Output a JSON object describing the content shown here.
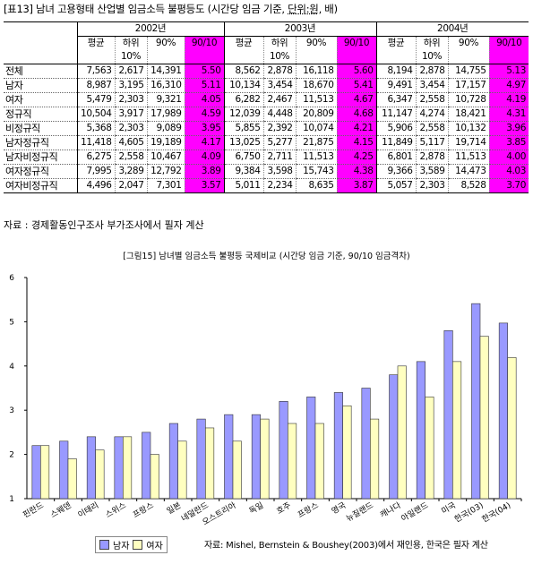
{
  "table": {
    "title_main": "[표13] 남녀 고용형태 산업별 임금소득 불평등도 (시간당 임금 기준, ",
    "title_unit": "단위:원",
    "title_tail": ", 배)",
    "years": [
      "2002년",
      "2003년",
      "2004년"
    ],
    "cols": [
      "평균",
      "하위10%",
      "90%",
      "90/10"
    ],
    "rows": [
      {
        "label": "전체",
        "values": [
          [
            "7,563",
            "2,617",
            "14,391",
            "5.50"
          ],
          [
            "8,562",
            "2,878",
            "16,118",
            "5.60"
          ],
          [
            "8,194",
            "2,878",
            "14,755",
            "5.13"
          ]
        ]
      },
      {
        "label": "남자",
        "values": [
          [
            "8,987",
            "3,195",
            "16,310",
            "5.11"
          ],
          [
            "10,134",
            "3,454",
            "18,670",
            "5.41"
          ],
          [
            "9,491",
            "3,454",
            "17,157",
            "4.97"
          ]
        ]
      },
      {
        "label": "여자",
        "values": [
          [
            "5,479",
            "2,303",
            "9,321",
            "4.05"
          ],
          [
            "6,282",
            "2,467",
            "11,513",
            "4.67"
          ],
          [
            "6,347",
            "2,558",
            "10,728",
            "4.19"
          ]
        ]
      },
      {
        "label": "정규직",
        "values": [
          [
            "10,504",
            "3,917",
            "17,989",
            "4.59"
          ],
          [
            "12,039",
            "4,448",
            "20,809",
            "4.68"
          ],
          [
            "11,147",
            "4,274",
            "18,421",
            "4.31"
          ]
        ]
      },
      {
        "label": "비정규직",
        "values": [
          [
            "5,368",
            "2,303",
            "9,089",
            "3.95"
          ],
          [
            "5,855",
            "2,392",
            "10,074",
            "4.21"
          ],
          [
            "5,906",
            "2,558",
            "10,132",
            "3.96"
          ]
        ]
      },
      {
        "label": "남자정규직",
        "values": [
          [
            "11,418",
            "4,605",
            "19,189",
            "4.17"
          ],
          [
            "13,025",
            "5,277",
            "21,875",
            "4.15"
          ],
          [
            "11,849",
            "5,117",
            "19,714",
            "3.85"
          ]
        ]
      },
      {
        "label": "남자비정규직",
        "values": [
          [
            "6,275",
            "2,558",
            "10,467",
            "4.09"
          ],
          [
            "6,750",
            "2,711",
            "11,513",
            "4.25"
          ],
          [
            "6,801",
            "2,878",
            "11,513",
            "4.00"
          ]
        ]
      },
      {
        "label": "여자정규직",
        "values": [
          [
            "7,995",
            "3,289",
            "12,792",
            "3.89"
          ],
          [
            "9,384",
            "3,598",
            "15,743",
            "4.38"
          ],
          [
            "9,366",
            "3,589",
            "14,473",
            "4.03"
          ]
        ]
      },
      {
        "label": "여자비정규직",
        "values": [
          [
            "4,496",
            "2,047",
            "7,301",
            "3.57"
          ],
          [
            "5,011",
            "2,234",
            "8,635",
            "3.87"
          ],
          [
            "5,057",
            "2,303",
            "8,528",
            "3.70"
          ]
        ]
      }
    ],
    "source": "자료 : 경제활동인구조사 부가조사에서 필자 계산"
  },
  "figure": {
    "title": "[그림15] 남녀별 임금소득 불평등 국제비교 (시간당 임금 기준, 90/10 임금격차)",
    "source": "자료: Mishel, Bernstein & Boushey(2003)에서 재인용, 한국은 필자 계산"
  },
  "chart_data": {
    "type": "bar",
    "categories": [
      "핀란드",
      "스웨덴",
      "이태리",
      "스위스",
      "프랑스",
      "일본",
      "네덜란드",
      "오스트리아",
      "독일",
      "호주",
      "프랑스",
      "영국",
      "뉴질랜드",
      "캐나다",
      "아일랜드",
      "미국",
      "한국(03)",
      "한국(04)"
    ],
    "series": [
      {
        "name": "남자",
        "color": "#9999ff",
        "values": [
          2.2,
          2.3,
          2.4,
          2.4,
          2.5,
          2.7,
          2.8,
          2.9,
          2.9,
          3.2,
          3.3,
          3.4,
          3.5,
          3.8,
          4.1,
          4.8,
          5.41,
          4.97
        ]
      },
      {
        "name": "여자",
        "color": "#ffffc0",
        "values": [
          2.2,
          1.9,
          2.1,
          2.4,
          2.0,
          2.3,
          2.6,
          2.3,
          2.8,
          2.7,
          2.7,
          3.1,
          2.8,
          4.0,
          3.3,
          4.1,
          4.67,
          4.19
        ]
      }
    ],
    "ylim": [
      1,
      6
    ],
    "yticks": [
      "1",
      "2",
      "3",
      "4",
      "5",
      "6"
    ],
    "grid": false,
    "legend": "bottom-left"
  }
}
